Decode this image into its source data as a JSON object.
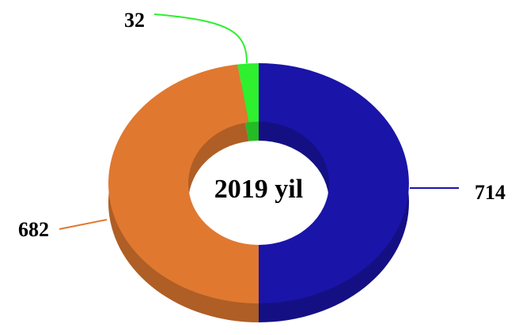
{
  "chart_data": {
    "type": "donut",
    "center_label": "2019 yil",
    "values": [
      714,
      682,
      32
    ],
    "colors": [
      "#1a14a8",
      "#e07830",
      "#2ef02e"
    ]
  }
}
